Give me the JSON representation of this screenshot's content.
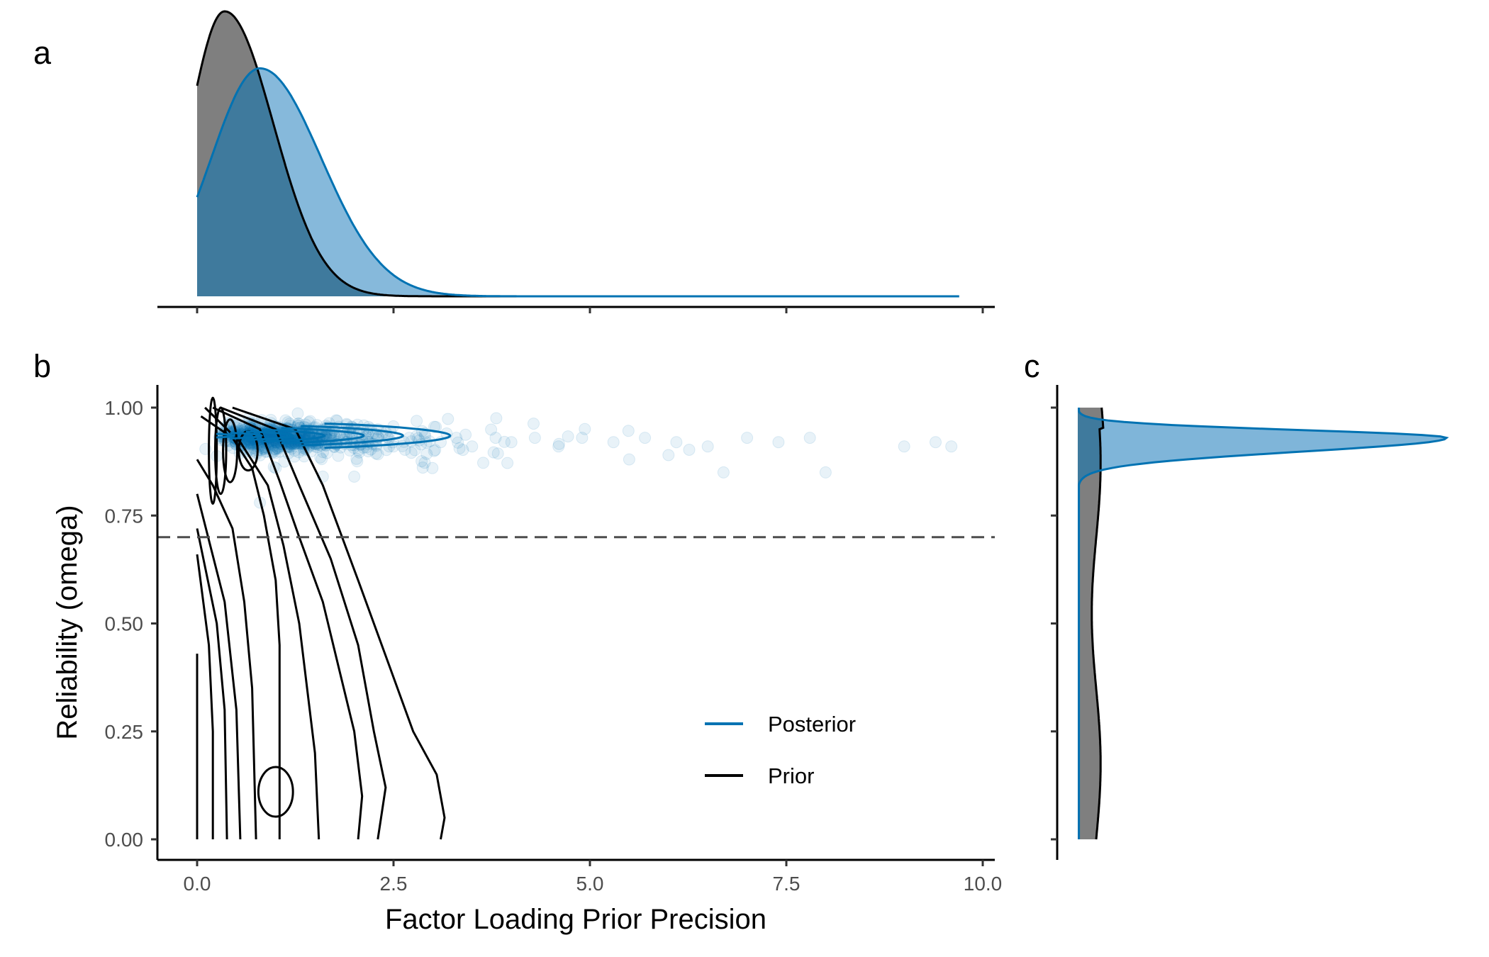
{
  "panels": {
    "a": "a",
    "b": "b",
    "c": "c"
  },
  "colors": {
    "posterior": "#0072B2",
    "posterior_fill": "#7FB5D9",
    "prior": "#000000",
    "prior_fill": "#7F7F7F",
    "overlap_fill": "#3F7A9D",
    "reference_line": "#4d4d4d"
  },
  "chart_data": [
    {
      "type": "area",
      "panel": "a",
      "description_scope": "marginal density of factor loading prior precision",
      "xlim": [
        0,
        10
      ],
      "series": [
        {
          "name": "Prior",
          "shape": "gamma",
          "mode": 0.35,
          "peak_density": 1.0,
          "x_start": 0.0,
          "x_end": 4.5
        },
        {
          "name": "Posterior",
          "shape": "gamma",
          "mode": 0.8,
          "peak_density": 0.8,
          "x_start": 0.0,
          "x_end": 9.7
        }
      ]
    },
    {
      "type": "scatter",
      "panel": "b",
      "xlabel": "Factor Loading Prior Precision",
      "ylabel": "Reliability (omega)",
      "xlim": [
        0,
        10
      ],
      "ylim": [
        0,
        1
      ],
      "x_ticks": [
        "0.0",
        "2.5",
        "5.0",
        "7.5",
        "10.0"
      ],
      "y_ticks": [
        "0.00",
        "0.25",
        "0.50",
        "0.75",
        "1.00"
      ],
      "reference_line": {
        "y": 0.7,
        "style": "dashed"
      },
      "legend": {
        "position": "bottom-right",
        "entries": [
          "Posterior",
          "Prior"
        ]
      },
      "series": [
        {
          "name": "Posterior",
          "kind": "points_and_contours",
          "approx_points": [
            [
              0.3,
              0.95
            ],
            [
              0.5,
              0.94
            ],
            [
              0.7,
              0.93
            ],
            [
              0.9,
              0.92
            ],
            [
              1.1,
              0.95
            ],
            [
              1.3,
              0.93
            ],
            [
              1.5,
              0.91
            ],
            [
              1.7,
              0.94
            ],
            [
              1.9,
              0.92
            ],
            [
              2.1,
              0.93
            ],
            [
              2.3,
              0.95
            ],
            [
              2.5,
              0.91
            ],
            [
              2.7,
              0.93
            ],
            [
              2.9,
              0.94
            ],
            [
              3.1,
              0.92
            ],
            [
              3.3,
              0.93
            ],
            [
              3.5,
              0.91
            ],
            [
              3.8,
              0.93
            ],
            [
              4.0,
              0.92
            ],
            [
              4.3,
              0.93
            ],
            [
              4.6,
              0.91
            ],
            [
              4.9,
              0.93
            ],
            [
              5.3,
              0.92
            ],
            [
              5.7,
              0.93
            ],
            [
              6.1,
              0.92
            ],
            [
              6.5,
              0.91
            ],
            [
              6.7,
              0.85
            ],
            [
              7.0,
              0.93
            ],
            [
              7.4,
              0.92
            ],
            [
              7.8,
              0.93
            ],
            [
              8.0,
              0.85
            ],
            [
              9.0,
              0.91
            ],
            [
              9.4,
              0.92
            ],
            [
              9.6,
              0.91
            ],
            [
              1.0,
              0.86
            ],
            [
              1.6,
              0.84
            ],
            [
              2.0,
              0.84
            ],
            [
              0.8,
              0.78
            ],
            [
              5.5,
              0.88
            ],
            [
              6.0,
              0.89
            ]
          ]
        },
        {
          "name": "Prior",
          "kind": "contours",
          "density_modes": [
            [
              1.0,
              0.11
            ],
            [
              0.35,
              0.9
            ]
          ]
        }
      ]
    },
    {
      "type": "area",
      "panel": "c",
      "description_scope": "marginal density of reliability (omega)",
      "ylim": [
        0,
        1
      ],
      "series": [
        {
          "name": "Prior",
          "shape": "near-uniform",
          "y_range": [
            0.0,
            1.0
          ]
        },
        {
          "name": "Posterior",
          "shape": "peaked",
          "mode": 0.93,
          "y_range": [
            0.0,
            1.0
          ]
        }
      ]
    }
  ]
}
